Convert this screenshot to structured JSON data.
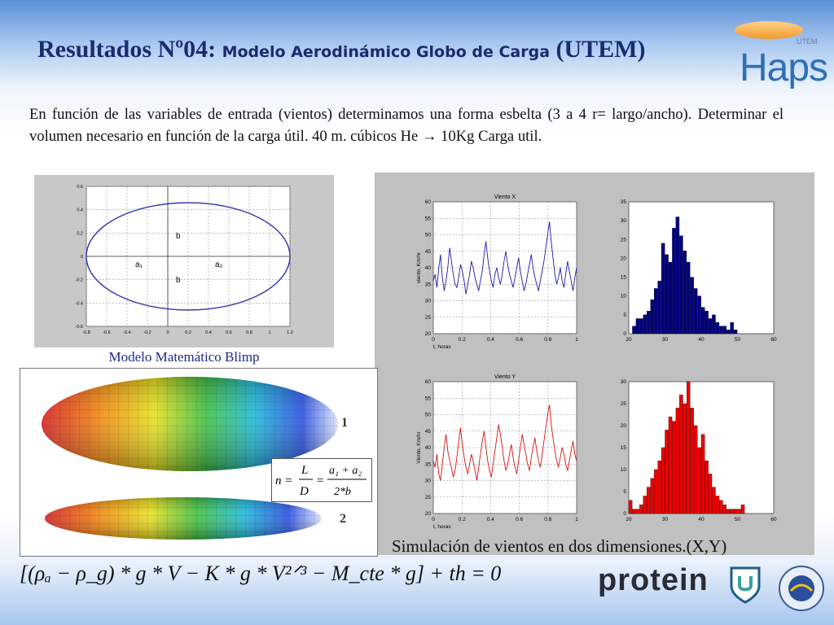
{
  "slide": {
    "title_prefix": "Resultados Nº04: ",
    "title_middle": "Modelo Aerodinámico Globo de Carga",
    "title_suffix": " (UTEM)",
    "paragraph": "En función de las variables de entrada (vientos) determinamos una forma esbelta (3 a 4 r= largo/ancho). Determinar el volumen necesario en función de la carga útil. 40 m. cúbicos He → 10Kg Carga util.",
    "caption_model": "Modelo Matemático Blimp",
    "caption_sim": "Simulación de vientos en dos dimensiones.(X,Y)",
    "ellipse_labels": {
      "b_top": "b",
      "b_bottom": "b",
      "a1": "a₁",
      "a2": "a₂"
    },
    "blimp_labels": {
      "one": "1",
      "two": "2"
    },
    "ratio_formula": {
      "lhs": "n =",
      "L": "L",
      "D": "D",
      "eq2": "=",
      "num": "a₁ + a₂",
      "den": "2*b"
    },
    "main_equation": "[(ρₐ − ρ_g) * g * V − K * g * V²ᐟ³ − M_cte * g] + th = 0",
    "logos": {
      "haps": "Haps",
      "haps_utem": "UTEM",
      "protein": "protein",
      "utem": "UTEM"
    }
  },
  "colors": {
    "title": "#1c2a6e",
    "caption": "#1b2a8a",
    "series_x": "#1a1aa8",
    "series_y": "#d81010",
    "hist_x": "#000080",
    "hist_y": "#ee0000"
  },
  "chart_data": [
    {
      "type": "line",
      "title": "Viento X",
      "xlabel": "t, horas",
      "ylabel": "viento, Km/hr",
      "xlim": [
        0,
        1
      ],
      "ylim": [
        20,
        60
      ],
      "xticks": [
        "0",
        "0.2",
        "0.4",
        "0.6",
        "0.8",
        "1"
      ],
      "yticks": [
        "20",
        "25",
        "30",
        "35",
        "40",
        "45",
        "50",
        "55",
        "60"
      ],
      "series": [
        {
          "values": [
            36,
            38,
            34,
            40,
            44,
            37,
            33,
            36,
            40,
            46,
            42,
            38,
            35,
            34,
            37,
            41,
            39,
            36,
            32,
            35,
            38,
            42,
            40,
            37,
            35,
            33,
            36,
            39,
            44,
            48,
            43,
            39,
            36,
            34,
            38,
            40,
            37,
            35,
            38,
            42,
            45,
            41,
            38,
            36,
            34,
            37,
            40,
            43,
            39,
            36,
            33,
            35,
            38,
            41,
            44,
            40,
            37,
            35,
            33,
            36,
            39,
            42,
            46,
            50,
            54,
            48,
            43,
            38,
            35,
            37,
            40,
            36,
            34,
            38,
            42,
            39,
            36,
            33,
            37,
            40
          ]
        }
      ]
    },
    {
      "type": "bar",
      "title": "",
      "xlim": [
        20,
        60
      ],
      "ylim": [
        0,
        35
      ],
      "xticks": [
        "20",
        "30",
        "40",
        "50",
        "60"
      ],
      "yticks": [
        "0",
        "5",
        "10",
        "15",
        "20",
        "25",
        "30",
        "35"
      ],
      "bin_start": 21,
      "bin_width": 1,
      "values": [
        2,
        4,
        4,
        5,
        6,
        9,
        12,
        14,
        24,
        21,
        19,
        28,
        31,
        26,
        22,
        19,
        15,
        12,
        10,
        7,
        6,
        4,
        5,
        3,
        2,
        2,
        1,
        3,
        1
      ]
    },
    {
      "type": "line",
      "title": "Viento Y",
      "xlabel": "t, horas",
      "ylabel": "Viento, Km/hr",
      "xlim": [
        0,
        1
      ],
      "ylim": [
        20,
        60
      ],
      "xticks": [
        "0",
        "0.2",
        "0.4",
        "0.6",
        "0.8",
        "1"
      ],
      "yticks": [
        "20",
        "25",
        "30",
        "35",
        "40",
        "45",
        "50",
        "55",
        "60"
      ],
      "series": [
        {
          "values": [
            36,
            34,
            38,
            32,
            30,
            35,
            40,
            44,
            39,
            36,
            34,
            31,
            33,
            37,
            42,
            46,
            41,
            37,
            34,
            32,
            35,
            38,
            36,
            33,
            30,
            34,
            38,
            42,
            45,
            40,
            36,
            33,
            31,
            35,
            39,
            43,
            47,
            44,
            40,
            36,
            33,
            35,
            38,
            41,
            37,
            34,
            32,
            36,
            40,
            44,
            41,
            38,
            35,
            33,
            37,
            40,
            43,
            39,
            36,
            34,
            38,
            42,
            46,
            50,
            53,
            47,
            43,
            39,
            36,
            34,
            37,
            40,
            38,
            35,
            33,
            36,
            39,
            42,
            38,
            36
          ]
        }
      ]
    },
    {
      "type": "bar",
      "title": "",
      "xlim": [
        20,
        60
      ],
      "ylim": [
        0,
        30
      ],
      "xticks": [
        "20",
        "30",
        "40",
        "50",
        "60"
      ],
      "yticks": [
        "0",
        "5",
        "10",
        "15",
        "20",
        "25",
        "30"
      ],
      "bin_start": 20,
      "bin_width": 1,
      "values": [
        3,
        1,
        1,
        2,
        4,
        6,
        8,
        10,
        12,
        15,
        19,
        22,
        21,
        24,
        27,
        25,
        30,
        24,
        20,
        15,
        18,
        12,
        9,
        6,
        4,
        3,
        2,
        1,
        1,
        1,
        1,
        2
      ]
    },
    {
      "type": "line",
      "title": "",
      "xlim": [
        -0.8,
        1.2
      ],
      "ylim": [
        -0.6,
        0.6
      ],
      "xticks": [
        "-0.8",
        "-0.6",
        "-0.4",
        "-0.2",
        "0",
        "0.2",
        "0.4",
        "0.6",
        "0.8",
        "1",
        "1.2"
      ],
      "yticks": [
        "-0.6",
        "-0.4",
        "-0.2",
        "0",
        "0.2",
        "0.4",
        "0.6"
      ],
      "series": [
        {
          "shape": "ellipse",
          "center": [
            0.2,
            0
          ],
          "semi_x": 1.0,
          "semi_y": 0.46
        }
      ]
    }
  ]
}
